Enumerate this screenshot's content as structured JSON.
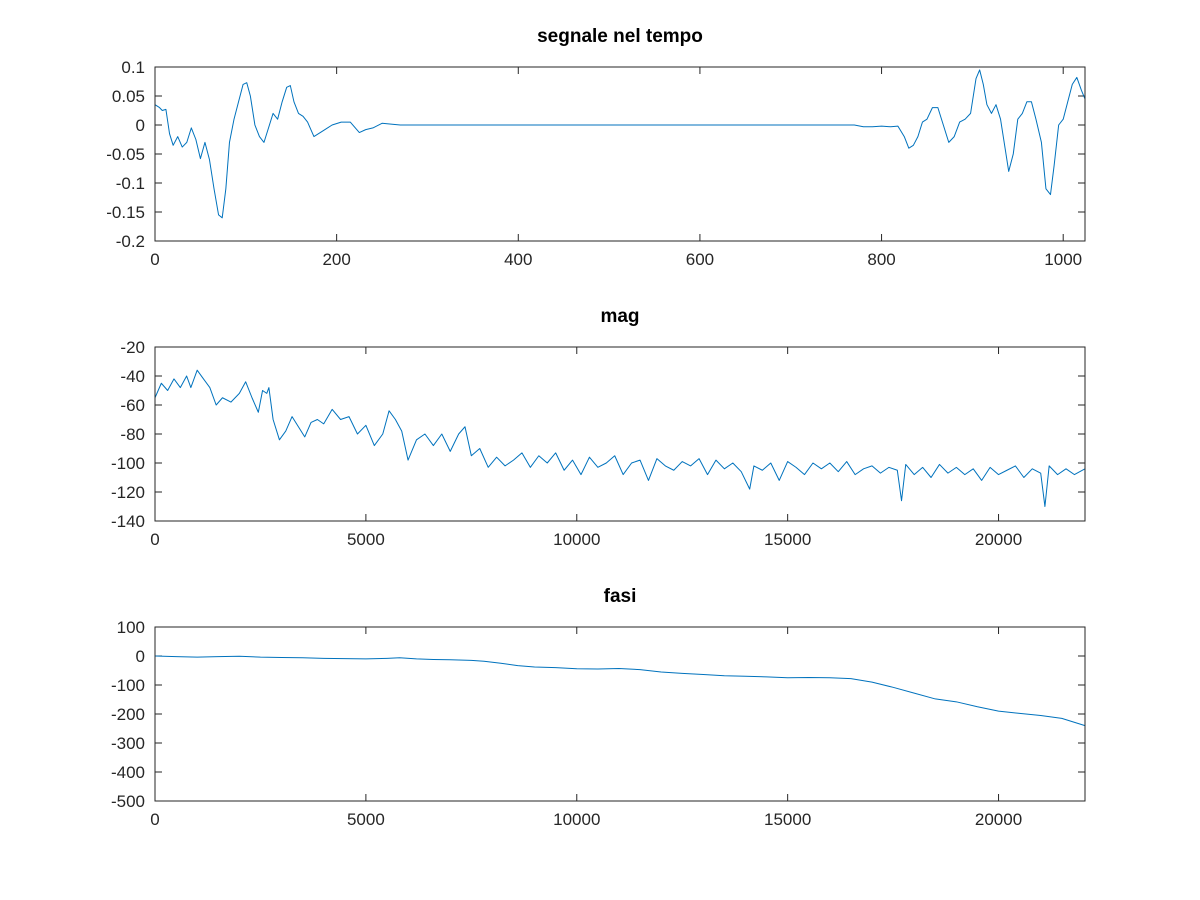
{
  "figure": {
    "background": "#ffffff",
    "line_color": "#0072bd",
    "axis_color": "#262626"
  },
  "chart_data": [
    {
      "type": "line",
      "title": "segnale nel tempo",
      "xlabel": "",
      "ylabel": "",
      "xlim": [
        0,
        1024
      ],
      "ylim": [
        -0.2,
        0.1
      ],
      "xticks": [
        0,
        200,
        400,
        600,
        800,
        1000
      ],
      "xtick_labels": [
        "0",
        "200",
        "400",
        "600",
        "800",
        "1000"
      ],
      "yticks": [
        0.1,
        0.05,
        0,
        -0.05,
        -0.1,
        -0.15,
        -0.2
      ],
      "ytick_labels": [
        "0.1",
        "0.05",
        "0",
        "-0.05",
        "-0.1",
        "-0.15",
        "-0.2"
      ],
      "grid": false,
      "series": [
        {
          "x": [
            0,
            5,
            8,
            12,
            16,
            20,
            25,
            30,
            35,
            40,
            45,
            50,
            55,
            60,
            65,
            70,
            74,
            78,
            82,
            87,
            92,
            97,
            101,
            105,
            110,
            115,
            120,
            125,
            130,
            135,
            140,
            145,
            149,
            153,
            158,
            163,
            168,
            175,
            185,
            195,
            205,
            215,
            225,
            232,
            240,
            250,
            257,
            270,
            300,
            400,
            500,
            600,
            700,
            770,
            780,
            790,
            800,
            810,
            818,
            825,
            830,
            835,
            840,
            845,
            850,
            856,
            862,
            868,
            874,
            880,
            886,
            892,
            898,
            904,
            908,
            912,
            916,
            921,
            926,
            931,
            936,
            940,
            945,
            950,
            955,
            960,
            965,
            970,
            976,
            981,
            986,
            990,
            995,
            1000,
            1005,
            1010,
            1015,
            1020,
            1024
          ],
          "y": [
            0.035,
            0.03,
            0.025,
            0.027,
            -0.015,
            -0.035,
            -0.02,
            -0.038,
            -0.03,
            -0.005,
            -0.025,
            -0.058,
            -0.03,
            -0.06,
            -0.11,
            -0.155,
            -0.16,
            -0.11,
            -0.03,
            0.01,
            0.04,
            0.07,
            0.073,
            0.05,
            0.0,
            -0.02,
            -0.03,
            -0.005,
            0.02,
            0.01,
            0.04,
            0.065,
            0.068,
            0.04,
            0.02,
            0.015,
            0.005,
            -0.02,
            -0.01,
            0.0,
            0.005,
            0.005,
            -0.013,
            -0.008,
            -0.005,
            0.003,
            0.002,
            0.0,
            0.0,
            0.0,
            0.0,
            0.0,
            0.0,
            0.0,
            -0.003,
            -0.003,
            -0.002,
            -0.003,
            -0.002,
            -0.02,
            -0.04,
            -0.035,
            -0.02,
            0.005,
            0.01,
            0.03,
            0.03,
            0.0,
            -0.03,
            -0.02,
            0.005,
            0.01,
            0.02,
            0.08,
            0.095,
            0.07,
            0.035,
            0.02,
            0.035,
            0.01,
            -0.04,
            -0.08,
            -0.05,
            0.01,
            0.02,
            0.04,
            0.04,
            0.01,
            -0.03,
            -0.11,
            -0.12,
            -0.07,
            0.0,
            0.01,
            0.04,
            0.07,
            0.082,
            0.06,
            0.045
          ]
        }
      ]
    },
    {
      "type": "line",
      "title": "mag",
      "xlabel": "",
      "ylabel": "",
      "xlim": [
        0,
        22050
      ],
      "ylim": [
        -140,
        -20
      ],
      "xticks": [
        0,
        5000,
        10000,
        15000,
        20000
      ],
      "xtick_labels": [
        "0",
        "5000",
        "10000",
        "15000",
        "20000"
      ],
      "yticks": [
        -20,
        -40,
        -60,
        -80,
        -100,
        -120,
        -140
      ],
      "ytick_labels": [
        "-20",
        "-40",
        "-60",
        "-80",
        "-100",
        "-120",
        "-140"
      ],
      "grid": false,
      "series": [
        {
          "x": [
            0,
            150,
            300,
            450,
            600,
            750,
            850,
            1000,
            1150,
            1300,
            1450,
            1600,
            1800,
            2000,
            2150,
            2300,
            2450,
            2550,
            2650,
            2700,
            2800,
            2950,
            3100,
            3250,
            3400,
            3550,
            3700,
            3850,
            4000,
            4200,
            4400,
            4600,
            4800,
            5000,
            5200,
            5400,
            5550,
            5700,
            5850,
            6000,
            6200,
            6400,
            6600,
            6800,
            7000,
            7200,
            7350,
            7500,
            7700,
            7900,
            8100,
            8300,
            8500,
            8700,
            8900,
            9100,
            9300,
            9500,
            9700,
            9900,
            10100,
            10300,
            10500,
            10700,
            10900,
            11100,
            11300,
            11500,
            11700,
            11900,
            12100,
            12300,
            12500,
            12700,
            12900,
            13100,
            13300,
            13500,
            13700,
            13900,
            14100,
            14200,
            14400,
            14600,
            14800,
            15000,
            15200,
            15400,
            15600,
            15800,
            16000,
            16200,
            16400,
            16600,
            16800,
            17000,
            17200,
            17400,
            17600,
            17700,
            17800,
            18000,
            18200,
            18400,
            18600,
            18800,
            19000,
            19200,
            19400,
            19600,
            19800,
            20000,
            20200,
            20400,
            20600,
            20800,
            21000,
            21100,
            21200,
            21400,
            21600,
            21800,
            22050
          ],
          "y": [
            -55,
            -45,
            -50,
            -42,
            -48,
            -40,
            -48,
            -36,
            -42,
            -48,
            -60,
            -55,
            -58,
            -52,
            -44,
            -55,
            -65,
            -50,
            -52,
            -48,
            -70,
            -84,
            -78,
            -68,
            -75,
            -82,
            -72,
            -70,
            -73,
            -63,
            -70,
            -68,
            -80,
            -74,
            -88,
            -80,
            -64,
            -70,
            -78,
            -98,
            -84,
            -80,
            -88,
            -80,
            -92,
            -80,
            -75,
            -95,
            -90,
            -103,
            -96,
            -102,
            -98,
            -93,
            -103,
            -95,
            -100,
            -93,
            -105,
            -98,
            -108,
            -96,
            -103,
            -100,
            -95,
            -108,
            -100,
            -98,
            -112,
            -97,
            -102,
            -105,
            -99,
            -102,
            -97,
            -108,
            -98,
            -104,
            -100,
            -106,
            -118,
            -102,
            -105,
            -100,
            -112,
            -99,
            -103,
            -108,
            -100,
            -104,
            -100,
            -106,
            -99,
            -108,
            -104,
            -102,
            -107,
            -103,
            -105,
            -126,
            -101,
            -108,
            -103,
            -110,
            -101,
            -107,
            -103,
            -108,
            -104,
            -112,
            -103,
            -108,
            -105,
            -102,
            -110,
            -104,
            -107,
            -130,
            -102,
            -108,
            -104,
            -108,
            -104
          ]
        }
      ]
    },
    {
      "type": "line",
      "title": "fasi",
      "xlabel": "",
      "ylabel": "",
      "xlim": [
        0,
        22050
      ],
      "ylim": [
        -500,
        100
      ],
      "xticks": [
        0,
        5000,
        10000,
        15000,
        20000
      ],
      "xtick_labels": [
        "0",
        "5000",
        "10000",
        "15000",
        "20000"
      ],
      "yticks": [
        100,
        0,
        -100,
        -200,
        -300,
        -400,
        -500
      ],
      "ytick_labels": [
        "100",
        "0",
        "-100",
        "-200",
        "-300",
        "-400",
        "-500"
      ],
      "grid": false,
      "series": [
        {
          "x": [
            0,
            500,
            1000,
            1500,
            2000,
            2500,
            3000,
            3500,
            4000,
            4500,
            5000,
            5500,
            5800,
            6200,
            6600,
            7000,
            7500,
            7800,
            8200,
            8600,
            9000,
            9500,
            10000,
            10500,
            11000,
            11500,
            12000,
            12500,
            13000,
            13500,
            14000,
            14500,
            15000,
            15500,
            16000,
            16500,
            17000,
            17500,
            18000,
            18500,
            19000,
            19500,
            20000,
            20500,
            21000,
            21500,
            22050
          ],
          "y": [
            0,
            -2,
            -4,
            -2,
            -1,
            -4,
            -5,
            -6,
            -8,
            -9,
            -10,
            -8,
            -6,
            -10,
            -12,
            -13,
            -15,
            -18,
            -25,
            -33,
            -38,
            -40,
            -44,
            -45,
            -43,
            -47,
            -55,
            -60,
            -64,
            -68,
            -70,
            -72,
            -75,
            -74,
            -75,
            -78,
            -90,
            -108,
            -128,
            -148,
            -158,
            -175,
            -190,
            -198,
            -205,
            -215,
            -240
          ]
        }
      ]
    }
  ]
}
